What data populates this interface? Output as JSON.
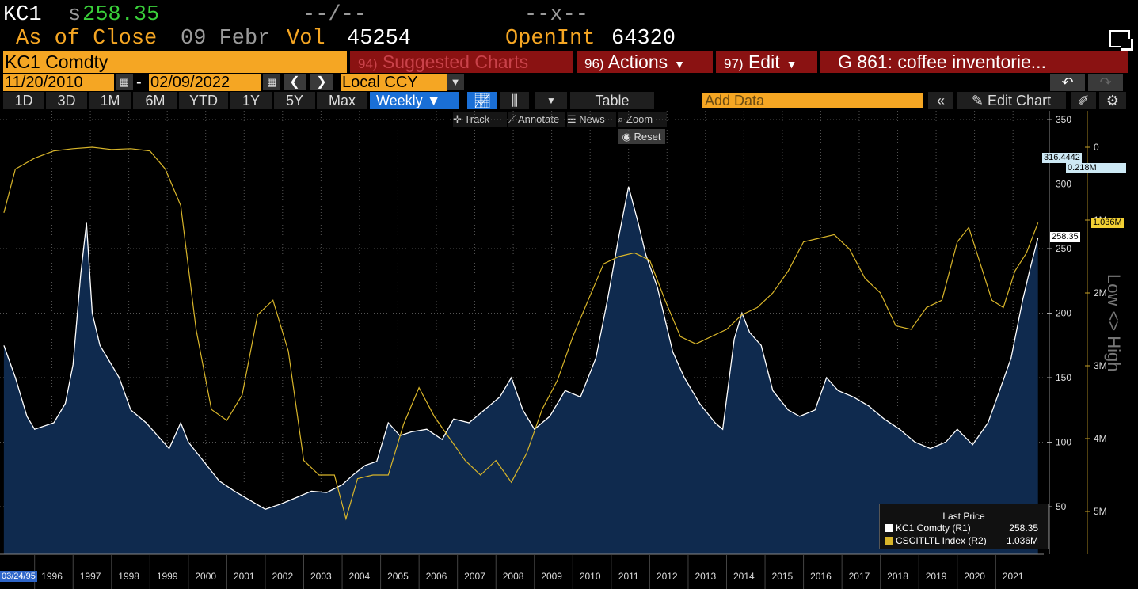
{
  "header": {
    "ticker": "KC1",
    "price_prefix": "s",
    "price": "258.35",
    "change": "--/--",
    "range": "--x--",
    "as_of_label": "As of Close",
    "as_of_date": "09 Febr",
    "vol_label": "Vol",
    "vol_value": "45254",
    "openint_label": "OpenInt",
    "openint_value": "64320"
  },
  "toolbar": {
    "security": "KC1 Comdty",
    "suggested_num": "94)",
    "suggested_label": "Suggested Charts",
    "actions_num": "96)",
    "actions_label": "Actions",
    "edit_num": "97)",
    "edit_label": "Edit",
    "title": "G 861: coffee inventorie..."
  },
  "dates": {
    "start": "11/20/2010",
    "end": "02/09/2022",
    "currency": "Local CCY"
  },
  "periods": [
    "1D",
    "3D",
    "1M",
    "6M",
    "YTD",
    "1Y",
    "5Y",
    "Max"
  ],
  "frequency": "Weekly",
  "table_label": "Table",
  "add_data_placeholder": "Add Data",
  "edit_chart_label": "Edit Chart",
  "chart_tools": {
    "track": "Track",
    "annotate": "Annotate",
    "news": "News",
    "zoom": "Zoom",
    "reset": "Reset"
  },
  "chart_data": {
    "type": "line",
    "x": [
      "1996",
      "1997",
      "1998",
      "1999",
      "2000",
      "2001",
      "2002",
      "2003",
      "2004",
      "2005",
      "2006",
      "2007",
      "2008",
      "2009",
      "2010",
      "2011",
      "2012",
      "2013",
      "2014",
      "2015",
      "2016",
      "2017",
      "2018",
      "2019",
      "2020",
      "2021"
    ],
    "start_label": "03/24/95",
    "y_left_ticks": [
      50,
      100,
      150,
      200,
      250,
      300,
      350
    ],
    "y_right_ticks": [
      "0",
      "1M",
      "2M",
      "3M",
      "4M",
      "5M"
    ],
    "y_right_label": "Low <> High",
    "series": [
      {
        "name": "KC1 Comdty (R1)",
        "color": "#ffffff",
        "fill": "#0f2a4e",
        "points": [
          [
            1995.2,
            175
          ],
          [
            1995.5,
            150
          ],
          [
            1995.8,
            120
          ],
          [
            1996.0,
            110
          ],
          [
            1996.5,
            115
          ],
          [
            1996.8,
            130
          ],
          [
            1997.0,
            160
          ],
          [
            1997.2,
            230
          ],
          [
            1997.35,
            270
          ],
          [
            1997.5,
            200
          ],
          [
            1997.7,
            175
          ],
          [
            1997.9,
            165
          ],
          [
            1998.2,
            150
          ],
          [
            1998.5,
            125
          ],
          [
            1998.9,
            115
          ],
          [
            1999.2,
            105
          ],
          [
            1999.5,
            95
          ],
          [
            1999.8,
            115
          ],
          [
            2000.0,
            100
          ],
          [
            2000.4,
            85
          ],
          [
            2000.8,
            70
          ],
          [
            2001.2,
            62
          ],
          [
            2001.6,
            55
          ],
          [
            2002.0,
            48
          ],
          [
            2002.4,
            52
          ],
          [
            2002.8,
            57
          ],
          [
            2003.2,
            62
          ],
          [
            2003.6,
            61
          ],
          [
            2004.0,
            67
          ],
          [
            2004.3,
            75
          ],
          [
            2004.6,
            82
          ],
          [
            2004.9,
            85
          ],
          [
            2005.2,
            115
          ],
          [
            2005.5,
            105
          ],
          [
            2005.8,
            108
          ],
          [
            2006.2,
            110
          ],
          [
            2006.6,
            102
          ],
          [
            2006.9,
            118
          ],
          [
            2007.3,
            115
          ],
          [
            2007.7,
            125
          ],
          [
            2008.1,
            135
          ],
          [
            2008.4,
            150
          ],
          [
            2008.7,
            125
          ],
          [
            2009.0,
            110
          ],
          [
            2009.4,
            120
          ],
          [
            2009.8,
            140
          ],
          [
            2010.2,
            135
          ],
          [
            2010.6,
            165
          ],
          [
            2010.9,
            210
          ],
          [
            2011.2,
            260
          ],
          [
            2011.45,
            298
          ],
          [
            2011.7,
            270
          ],
          [
            2011.9,
            245
          ],
          [
            2012.2,
            220
          ],
          [
            2012.6,
            170
          ],
          [
            2012.9,
            150
          ],
          [
            2013.3,
            130
          ],
          [
            2013.7,
            115
          ],
          [
            2013.9,
            110
          ],
          [
            2014.2,
            180
          ],
          [
            2014.4,
            200
          ],
          [
            2014.6,
            185
          ],
          [
            2014.9,
            175
          ],
          [
            2015.2,
            140
          ],
          [
            2015.6,
            125
          ],
          [
            2015.9,
            120
          ],
          [
            2016.3,
            125
          ],
          [
            2016.6,
            150
          ],
          [
            2016.9,
            140
          ],
          [
            2017.3,
            135
          ],
          [
            2017.7,
            128
          ],
          [
            2018.1,
            118
          ],
          [
            2018.5,
            110
          ],
          [
            2018.9,
            100
          ],
          [
            2019.3,
            95
          ],
          [
            2019.7,
            100
          ],
          [
            2020.0,
            110
          ],
          [
            2020.4,
            98
          ],
          [
            2020.8,
            115
          ],
          [
            2021.1,
            140
          ],
          [
            2021.4,
            165
          ],
          [
            2021.7,
            210
          ],
          [
            2021.9,
            235
          ],
          [
            2022.1,
            258.35
          ]
        ]
      },
      {
        "name": "CSCITLTL Index (R2)",
        "color": "#d8b52a",
        "points": [
          [
            1995.2,
            0.9
          ],
          [
            1995.5,
            0.3
          ],
          [
            1996.0,
            0.15
          ],
          [
            1996.5,
            0.05
          ],
          [
            1997.0,
            0.02
          ],
          [
            1997.5,
            0.0
          ],
          [
            1998.0,
            0.03
          ],
          [
            1998.5,
            0.02
          ],
          [
            1999.0,
            0.05
          ],
          [
            1999.4,
            0.3
          ],
          [
            1999.8,
            0.8
          ],
          [
            2000.2,
            2.5
          ],
          [
            2000.6,
            3.6
          ],
          [
            2001.0,
            3.75
          ],
          [
            2001.4,
            3.4
          ],
          [
            2001.8,
            2.3
          ],
          [
            2002.2,
            2.1
          ],
          [
            2002.6,
            2.8
          ],
          [
            2003.0,
            4.3
          ],
          [
            2003.4,
            4.5
          ],
          [
            2003.8,
            4.5
          ],
          [
            2004.1,
            5.1
          ],
          [
            2004.4,
            4.55
          ],
          [
            2004.8,
            4.5
          ],
          [
            2005.2,
            4.5
          ],
          [
            2005.6,
            3.8
          ],
          [
            2006.0,
            3.3
          ],
          [
            2006.4,
            3.7
          ],
          [
            2006.8,
            4.0
          ],
          [
            2007.2,
            4.3
          ],
          [
            2007.6,
            4.5
          ],
          [
            2008.0,
            4.3
          ],
          [
            2008.4,
            4.6
          ],
          [
            2008.8,
            4.2
          ],
          [
            2009.2,
            3.6
          ],
          [
            2009.6,
            3.2
          ],
          [
            2010.0,
            2.6
          ],
          [
            2010.4,
            2.1
          ],
          [
            2010.8,
            1.6
          ],
          [
            2011.2,
            1.5
          ],
          [
            2011.6,
            1.45
          ],
          [
            2012.0,
            1.55
          ],
          [
            2012.4,
            2.1
          ],
          [
            2012.8,
            2.6
          ],
          [
            2013.2,
            2.7
          ],
          [
            2013.6,
            2.6
          ],
          [
            2014.0,
            2.5
          ],
          [
            2014.4,
            2.3
          ],
          [
            2014.8,
            2.2
          ],
          [
            2015.2,
            2.0
          ],
          [
            2015.6,
            1.7
          ],
          [
            2016.0,
            1.3
          ],
          [
            2016.4,
            1.25
          ],
          [
            2016.8,
            1.2
          ],
          [
            2017.2,
            1.4
          ],
          [
            2017.6,
            1.8
          ],
          [
            2018.0,
            2.0
          ],
          [
            2018.4,
            2.45
          ],
          [
            2018.8,
            2.5
          ],
          [
            2019.2,
            2.2
          ],
          [
            2019.6,
            2.1
          ],
          [
            2020.0,
            1.3
          ],
          [
            2020.3,
            1.1
          ],
          [
            2020.6,
            1.6
          ],
          [
            2020.9,
            2.1
          ],
          [
            2021.2,
            2.2
          ],
          [
            2021.5,
            1.7
          ],
          [
            2021.8,
            1.45
          ],
          [
            2022.1,
            1.036
          ]
        ]
      }
    ],
    "last_price_title": "Last Price",
    "legend": [
      {
        "name": "KC1 Comdty  (R1)",
        "value": "258.35"
      },
      {
        "name": "CSCITLTL Index  (R2)",
        "value": "1.036M"
      }
    ],
    "badges": {
      "high": "316.4442",
      "vol": "0.218M",
      "last_r2": "1.036M",
      "last_r1": "258.35"
    },
    "colors": {
      "price": "#ffffff",
      "index": "#d8b52a",
      "fill": "#0f2a4e"
    }
  }
}
